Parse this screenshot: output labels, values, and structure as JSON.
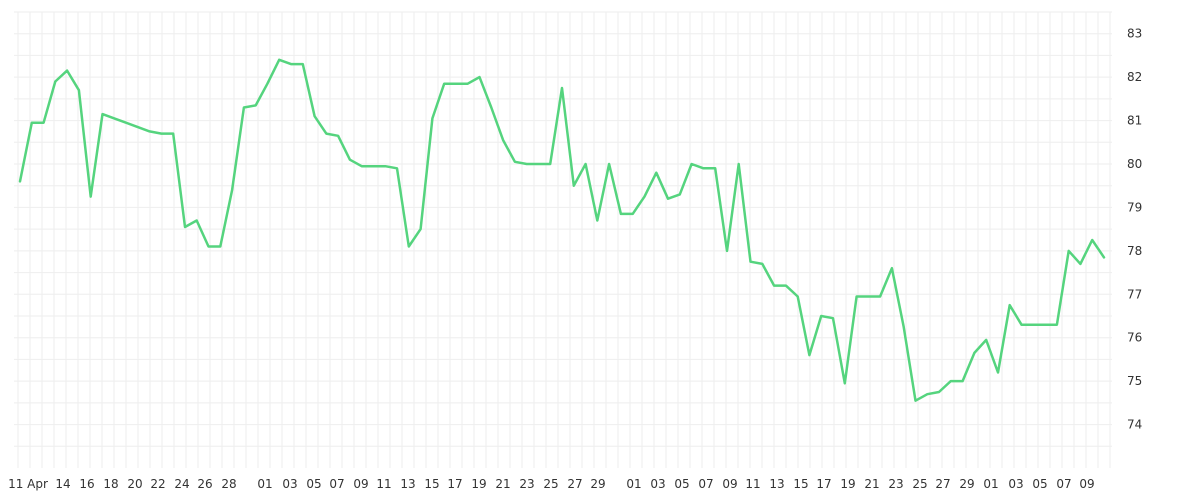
{
  "chart_data": {
    "type": "line",
    "grid": true,
    "y_axis_position": "right",
    "ylim": [
      73,
      83.5
    ],
    "y_ticks": [
      74,
      75,
      76,
      77,
      78,
      79,
      80,
      81,
      82,
      83
    ],
    "x_tick_labels": [
      "11 Apr",
      "14",
      "16",
      "18",
      "20",
      "22",
      "24",
      "26",
      "28",
      "01",
      "03",
      "05",
      "07",
      "09",
      "11",
      "13",
      "15",
      "17",
      "19",
      "21",
      "23",
      "25",
      "27",
      "29",
      "01",
      "03",
      "05",
      "07",
      "09",
      "11",
      "13",
      "15",
      "17",
      "19",
      "21",
      "23",
      "25",
      "27",
      "29",
      "01",
      "03",
      "05",
      "07",
      "09"
    ],
    "colors": {
      "series": "#55d47e"
    },
    "series": [
      {
        "values": [
          79.6,
          80.95,
          80.95,
          81.9,
          82.15,
          81.7,
          79.25,
          81.15,
          81.05,
          80.95,
          80.85,
          80.75,
          80.7,
          80.7,
          78.55,
          78.7,
          78.1,
          78.1,
          79.4,
          81.3,
          81.35,
          81.85,
          82.4,
          82.3,
          82.3,
          81.1,
          80.7,
          80.65,
          80.1,
          79.95,
          79.95,
          79.95,
          79.9,
          78.1,
          78.5,
          81.05,
          81.85,
          81.85,
          81.85,
          82.0,
          81.3,
          80.55,
          80.05,
          80.0,
          80.0,
          80.0,
          81.75,
          79.5,
          80.0,
          78.7,
          80.0,
          78.85,
          78.85,
          79.25,
          79.8,
          79.2,
          79.3,
          80.0,
          79.9,
          79.9,
          78.0,
          80.0,
          77.75,
          77.7,
          77.2,
          77.2,
          76.95,
          75.6,
          76.5,
          76.45,
          74.95,
          76.95,
          76.95,
          76.95,
          77.6,
          76.25,
          74.55,
          74.7,
          74.75,
          75.0,
          75.0,
          75.65,
          75.95,
          75.2,
          76.75,
          76.3,
          76.3,
          76.3,
          76.3,
          78.0,
          77.7,
          78.25,
          77.85
        ]
      }
    ]
  }
}
